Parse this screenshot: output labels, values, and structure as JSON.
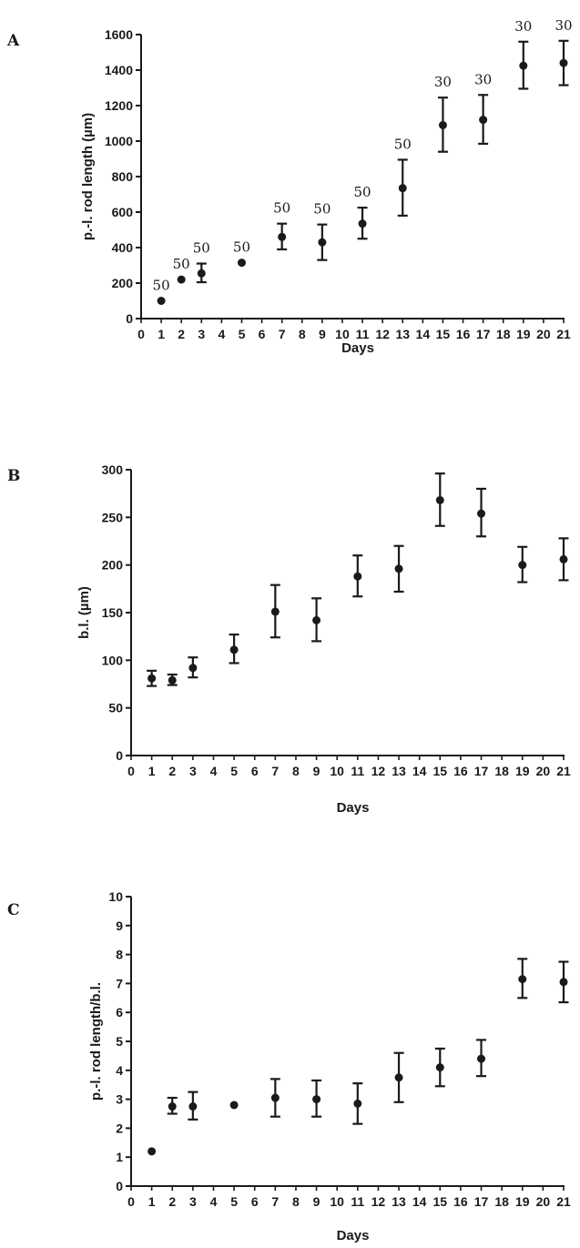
{
  "chart_data": [
    {
      "type": "scatter",
      "panel_label": "A",
      "xlabel": "Days",
      "ylabel": "p.-l. rod length (µm)",
      "xlim": [
        0,
        21
      ],
      "ylim": [
        0,
        1600
      ],
      "xticks": [
        "0",
        "1",
        "2",
        "3",
        "4",
        "5",
        "6",
        "7",
        "8",
        "9",
        "10",
        "11",
        "12",
        "13",
        "14",
        "15",
        "16",
        "17",
        "18",
        "19",
        "20",
        "21"
      ],
      "yticks": [
        "0",
        "200",
        "400",
        "600",
        "800",
        "1000",
        "1200",
        "1400",
        "1600"
      ],
      "error_bars": true,
      "grid": false,
      "points": [
        {
          "x": 1,
          "y": 100,
          "lo": 100,
          "hi": 100,
          "label": "50"
        },
        {
          "x": 2,
          "y": 220,
          "lo": 220,
          "hi": 220,
          "label": "50"
        },
        {
          "x": 3,
          "y": 255,
          "lo": 205,
          "hi": 310,
          "label": "50"
        },
        {
          "x": 5,
          "y": 315,
          "lo": 315,
          "hi": 315,
          "label": "50"
        },
        {
          "x": 7,
          "y": 460,
          "lo": 390,
          "hi": 535,
          "label": "50"
        },
        {
          "x": 9,
          "y": 430,
          "lo": 330,
          "hi": 530,
          "label": "50"
        },
        {
          "x": 11,
          "y": 535,
          "lo": 450,
          "hi": 625,
          "label": "50"
        },
        {
          "x": 13,
          "y": 735,
          "lo": 580,
          "hi": 895,
          "label": "50"
        },
        {
          "x": 15,
          "y": 1090,
          "lo": 940,
          "hi": 1245,
          "label": "30"
        },
        {
          "x": 17,
          "y": 1120,
          "lo": 985,
          "hi": 1260,
          "label": "30"
        },
        {
          "x": 19,
          "y": 1425,
          "lo": 1295,
          "hi": 1560,
          "label": "30"
        },
        {
          "x": 21,
          "y": 1440,
          "lo": 1315,
          "hi": 1565,
          "label": "30"
        }
      ]
    },
    {
      "type": "scatter",
      "panel_label": "B",
      "xlabel": "Days",
      "ylabel": "b.l. (µm)",
      "xlim": [
        0,
        21
      ],
      "ylim": [
        0,
        300
      ],
      "xticks": [
        "0",
        "1",
        "2",
        "3",
        "4",
        "5",
        "6",
        "7",
        "8",
        "9",
        "10",
        "11",
        "12",
        "13",
        "14",
        "15",
        "16",
        "17",
        "18",
        "19",
        "20",
        "21"
      ],
      "yticks": [
        "0",
        "50",
        "100",
        "150",
        "200",
        "250",
        "300"
      ],
      "error_bars": true,
      "grid": false,
      "points": [
        {
          "x": 1,
          "y": 81,
          "lo": 73,
          "hi": 89
        },
        {
          "x": 2,
          "y": 79,
          "lo": 74,
          "hi": 85
        },
        {
          "x": 3,
          "y": 92,
          "lo": 82,
          "hi": 103
        },
        {
          "x": 5,
          "y": 111,
          "lo": 97,
          "hi": 127
        },
        {
          "x": 7,
          "y": 151,
          "lo": 124,
          "hi": 179
        },
        {
          "x": 9,
          "y": 142,
          "lo": 120,
          "hi": 165
        },
        {
          "x": 11,
          "y": 188,
          "lo": 167,
          "hi": 210
        },
        {
          "x": 13,
          "y": 196,
          "lo": 172,
          "hi": 220
        },
        {
          "x": 15,
          "y": 268,
          "lo": 241,
          "hi": 296
        },
        {
          "x": 17,
          "y": 254,
          "lo": 230,
          "hi": 280
        },
        {
          "x": 19,
          "y": 200,
          "lo": 182,
          "hi": 219
        },
        {
          "x": 21,
          "y": 206,
          "lo": 184,
          "hi": 228
        }
      ]
    },
    {
      "type": "scatter",
      "panel_label": "C",
      "xlabel": "Days",
      "ylabel": "p.-l. rod length/b.l.",
      "xlim": [
        0,
        21
      ],
      "ylim": [
        0,
        10
      ],
      "xticks": [
        "0",
        "1",
        "2",
        "3",
        "4",
        "5",
        "6",
        "7",
        "8",
        "9",
        "10",
        "11",
        "12",
        "13",
        "14",
        "15",
        "16",
        "17",
        "18",
        "19",
        "20",
        "21"
      ],
      "yticks": [
        "0",
        "1",
        "2",
        "3",
        "4",
        "5",
        "6",
        "7",
        "8",
        "9",
        "10"
      ],
      "error_bars": true,
      "grid": false,
      "points": [
        {
          "x": 1,
          "y": 1.2,
          "lo": 1.2,
          "hi": 1.2
        },
        {
          "x": 2,
          "y": 2.75,
          "lo": 2.5,
          "hi": 3.05
        },
        {
          "x": 3,
          "y": 2.75,
          "lo": 2.3,
          "hi": 3.25
        },
        {
          "x": 5,
          "y": 2.8,
          "lo": 2.8,
          "hi": 2.8
        },
        {
          "x": 7,
          "y": 3.05,
          "lo": 2.4,
          "hi": 3.7
        },
        {
          "x": 9,
          "y": 3.0,
          "lo": 2.4,
          "hi": 3.65
        },
        {
          "x": 11,
          "y": 2.85,
          "lo": 2.15,
          "hi": 3.55
        },
        {
          "x": 13,
          "y": 3.75,
          "lo": 2.9,
          "hi": 4.6
        },
        {
          "x": 15,
          "y": 4.1,
          "lo": 3.45,
          "hi": 4.75
        },
        {
          "x": 17,
          "y": 4.4,
          "lo": 3.8,
          "hi": 5.05
        },
        {
          "x": 19,
          "y": 7.15,
          "lo": 6.5,
          "hi": 7.85
        },
        {
          "x": 21,
          "y": 7.05,
          "lo": 6.35,
          "hi": 7.75
        }
      ]
    }
  ],
  "colors": {
    "ink": "#1a1a1a",
    "background": "#ffffff"
  }
}
